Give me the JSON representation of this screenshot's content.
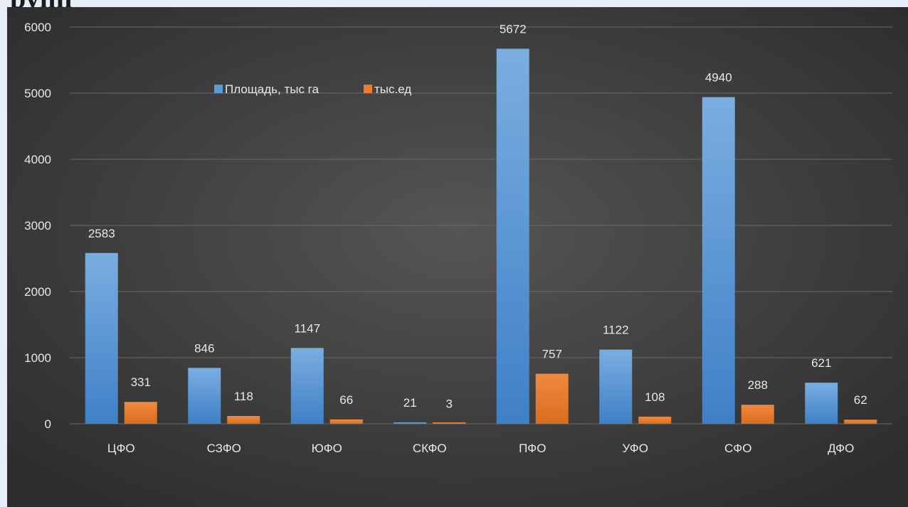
{
  "header": {
    "cut_title": "рупп"
  },
  "colors": {
    "series1": "#5b9bd5",
    "series2": "#ed7d31",
    "gridline": "#6a6a6a"
  },
  "chart_data": {
    "type": "bar",
    "categories": [
      "ЦФО",
      "СЗФО",
      "ЮФО",
      "СКФО",
      "ПФО",
      "УФО",
      "СФО",
      "ДФО"
    ],
    "series": [
      {
        "name": "Площадь, тыс га",
        "values": [
          2583,
          846,
          1147,
          21,
          5672,
          1122,
          4940,
          621
        ]
      },
      {
        "name": "тыс.ед",
        "values": [
          331,
          118,
          66,
          3,
          757,
          108,
          288,
          62
        ]
      }
    ],
    "ylim": [
      0,
      6000
    ],
    "yticks": [
      0,
      1000,
      2000,
      3000,
      4000,
      5000,
      6000
    ],
    "grid": true,
    "legend": "top-left"
  }
}
